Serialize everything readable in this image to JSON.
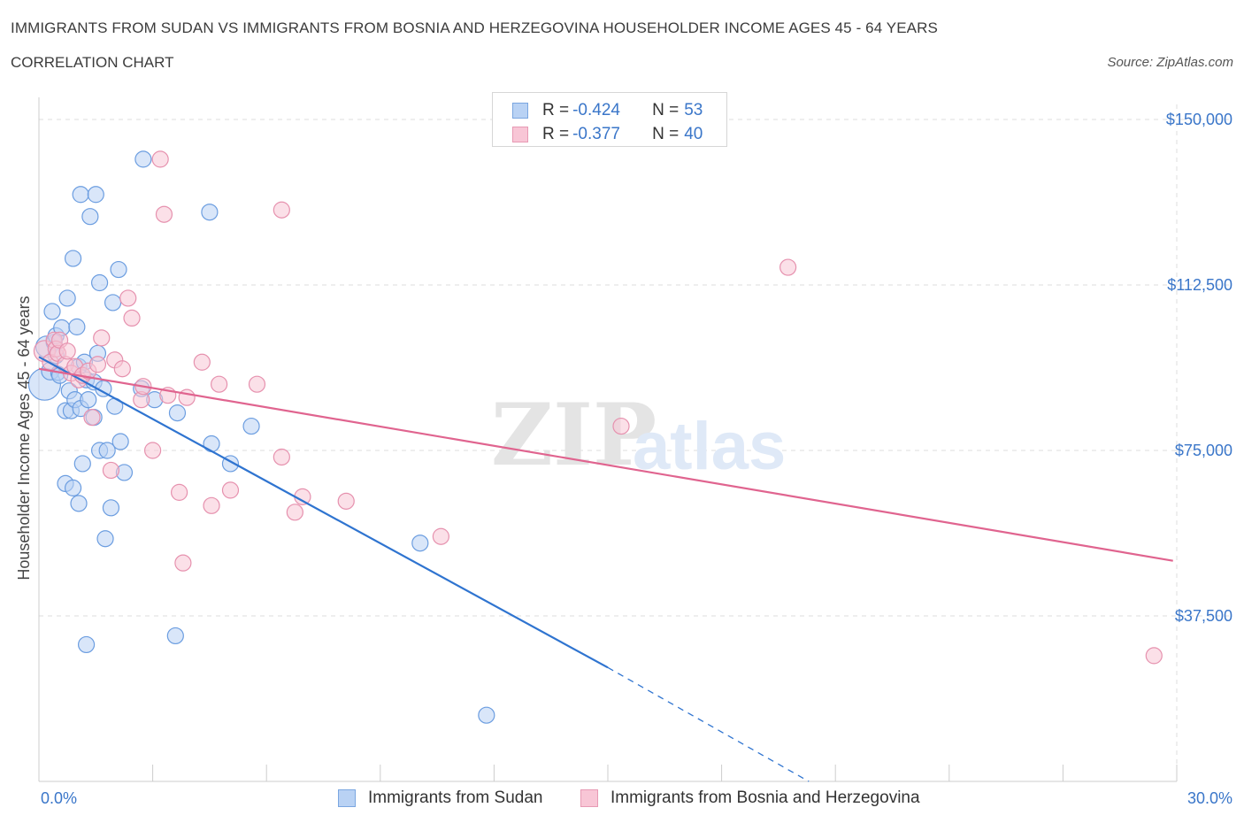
{
  "header": {
    "title": "IMMIGRANTS FROM SUDAN VS IMMIGRANTS FROM BOSNIA AND HERZEGOVINA HOUSEHOLDER INCOME AGES 45 - 64 YEARS",
    "subtitle": "CORRELATION CHART",
    "source": "Source: ZipAtlas.com"
  },
  "legend": {
    "series1": {
      "r_label": "R = ",
      "r_value": "-0.424",
      "n_label": "N = ",
      "n_value": "53"
    },
    "series2": {
      "r_label": "R = ",
      "r_value": "-0.377",
      "n_label": "N = ",
      "n_value": "40"
    }
  },
  "watermark": {
    "zip": "ZIP",
    "atlas": "atlas"
  },
  "colors": {
    "blue_fill": "#b9d2f4",
    "blue_stroke": "#6b9de0",
    "blue_line": "#2f74d0",
    "pink_fill": "#f8c6d6",
    "pink_stroke": "#e691ae",
    "pink_line": "#e0648f",
    "grid": "#dddddd",
    "axis_text": "#3a76c9"
  },
  "chart_data": {
    "type": "scatter",
    "title": "IMMIGRANTS FROM SUDAN VS IMMIGRANTS FROM BOSNIA AND HERZEGOVINA HOUSEHOLDER INCOME AGES 45 - 64 YEARS",
    "xlabel": "",
    "ylabel": "Householder Income Ages 45 - 64 years",
    "xlim": [
      0,
      30
    ],
    "ylim": [
      0,
      150000
    ],
    "x_tick_labels": [
      "0.0%",
      "30.0%"
    ],
    "y_ticks": [
      {
        "value": 150000,
        "label": "$150,000"
      },
      {
        "value": 112500,
        "label": "$112,500"
      },
      {
        "value": 75000,
        "label": "$75,000"
      },
      {
        "value": 37500,
        "label": "$37,500"
      }
    ],
    "grid": true,
    "series": [
      {
        "name": "Immigrants from Sudan",
        "color": "blue",
        "r": -0.424,
        "n": 53,
        "trend": {
          "x0": 0.0,
          "y0": 96200,
          "x1": 15.0,
          "y1": 25800,
          "dash_to_x": 20.3,
          "dash_to_y": 0
        },
        "points": [
          [
            0.15,
            90000,
            18
          ],
          [
            0.2,
            98500,
            12
          ],
          [
            0.3,
            93000,
            10
          ],
          [
            0.35,
            106500,
            9
          ],
          [
            0.4,
            99500,
            9
          ],
          [
            0.45,
            96500,
            9
          ],
          [
            0.5,
            92500,
            8
          ],
          [
            0.45,
            101000,
            9
          ],
          [
            0.6,
            102800,
            9
          ],
          [
            0.55,
            92000,
            9
          ],
          [
            0.7,
            84000,
            9
          ],
          [
            0.75,
            109500,
            9
          ],
          [
            0.8,
            88500,
            9
          ],
          [
            0.7,
            67500,
            9
          ],
          [
            0.9,
            118500,
            9
          ],
          [
            0.85,
            84000,
            9
          ],
          [
            0.95,
            86500,
            9
          ],
          [
            0.9,
            66500,
            9
          ],
          [
            1.0,
            103000,
            9
          ],
          [
            1.05,
            63000,
            9
          ],
          [
            1.05,
            94000,
            9
          ],
          [
            1.1,
            133000,
            9
          ],
          [
            1.1,
            84500,
            9
          ],
          [
            1.15,
            72000,
            9
          ],
          [
            1.2,
            95000,
            9
          ],
          [
            1.25,
            91000,
            9
          ],
          [
            1.25,
            31000,
            9
          ],
          [
            1.3,
            86500,
            9
          ],
          [
            1.35,
            128000,
            9
          ],
          [
            1.45,
            90500,
            9
          ],
          [
            1.45,
            82500,
            9
          ],
          [
            1.5,
            133000,
            9
          ],
          [
            1.55,
            97000,
            9
          ],
          [
            1.6,
            113000,
            9
          ],
          [
            1.6,
            75000,
            9
          ],
          [
            1.7,
            89000,
            9
          ],
          [
            1.75,
            55000,
            9
          ],
          [
            1.8,
            75000,
            9
          ],
          [
            1.9,
            62000,
            9
          ],
          [
            1.95,
            108500,
            9
          ],
          [
            2.0,
            85000,
            9
          ],
          [
            2.1,
            116000,
            9
          ],
          [
            2.15,
            77000,
            9
          ],
          [
            2.25,
            70000,
            9
          ],
          [
            2.75,
            141000,
            9
          ],
          [
            2.7,
            89000,
            9
          ],
          [
            3.05,
            86500,
            9
          ],
          [
            3.6,
            33000,
            9
          ],
          [
            3.65,
            83500,
            9
          ],
          [
            4.55,
            76500,
            9
          ],
          [
            4.5,
            129000,
            9
          ],
          [
            5.05,
            72000,
            9
          ],
          [
            5.6,
            80500,
            9
          ],
          [
            10.05,
            54000,
            9
          ],
          [
            11.8,
            15000,
            9
          ]
        ]
      },
      {
        "name": "Immigrants from Bosnia and Herzegovina",
        "color": "pink",
        "r": -0.377,
        "n": 40,
        "trend": {
          "x0": 0.0,
          "y0": 93500,
          "x1": 29.9,
          "y1": 50000
        },
        "points": [
          [
            0.15,
            97500,
            12
          ],
          [
            0.3,
            95000,
            9
          ],
          [
            0.4,
            100000,
            9
          ],
          [
            0.45,
            98000,
            9
          ],
          [
            0.5,
            97000,
            9
          ],
          [
            0.55,
            100000,
            9
          ],
          [
            0.7,
            94500,
            9
          ],
          [
            0.75,
            97500,
            9
          ],
          [
            0.85,
            92500,
            9
          ],
          [
            0.95,
            94000,
            9
          ],
          [
            1.05,
            91000,
            9
          ],
          [
            1.15,
            92000,
            9
          ],
          [
            1.3,
            93000,
            9
          ],
          [
            1.4,
            82500,
            9
          ],
          [
            1.55,
            94500,
            9
          ],
          [
            1.65,
            100500,
            9
          ],
          [
            1.9,
            70500,
            9
          ],
          [
            2.0,
            95500,
            9
          ],
          [
            2.2,
            93500,
            9
          ],
          [
            2.35,
            109500,
            9
          ],
          [
            2.45,
            105000,
            9
          ],
          [
            2.7,
            86500,
            9
          ],
          [
            2.75,
            89500,
            9
          ],
          [
            3.0,
            75000,
            9
          ],
          [
            3.2,
            141000,
            9
          ],
          [
            3.3,
            128500,
            9
          ],
          [
            3.4,
            87500,
            9
          ],
          [
            3.7,
            65500,
            9
          ],
          [
            3.8,
            49500,
            9
          ],
          [
            3.9,
            87000,
            9
          ],
          [
            4.3,
            95000,
            9
          ],
          [
            4.55,
            62500,
            9
          ],
          [
            4.75,
            90000,
            9
          ],
          [
            5.05,
            66000,
            9
          ],
          [
            5.75,
            90000,
            9
          ],
          [
            6.4,
            73500,
            9
          ],
          [
            6.4,
            129500,
            9
          ],
          [
            6.75,
            61000,
            9
          ],
          [
            6.95,
            64500,
            9
          ],
          [
            8.1,
            63500,
            9
          ],
          [
            10.6,
            55500,
            9
          ],
          [
            15.35,
            80500,
            9
          ],
          [
            19.75,
            116500,
            9
          ],
          [
            29.4,
            28500,
            9
          ]
        ]
      }
    ],
    "legend": [
      "Immigrants from Sudan",
      "Immigrants from Bosnia and Herzegovina"
    ]
  }
}
